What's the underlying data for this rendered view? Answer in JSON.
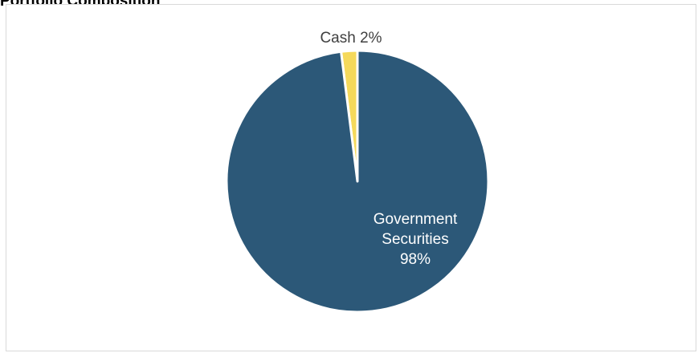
{
  "chart_data": {
    "type": "pie",
    "title": "Portfolio Composition",
    "slices": [
      {
        "label": "Cash",
        "value": 2,
        "value_label": "2%",
        "color": "#F5D95B",
        "label_color": "#404040",
        "label_lines": [
          "Cash"
        ]
      },
      {
        "label": "Government Securities",
        "value": 98,
        "value_label": "98%",
        "color": "#2C5878",
        "label_color": "#ffffff",
        "label_lines": [
          "Government",
          "Securities"
        ]
      }
    ],
    "legend": "none",
    "border_color": "#D9D9D9"
  }
}
